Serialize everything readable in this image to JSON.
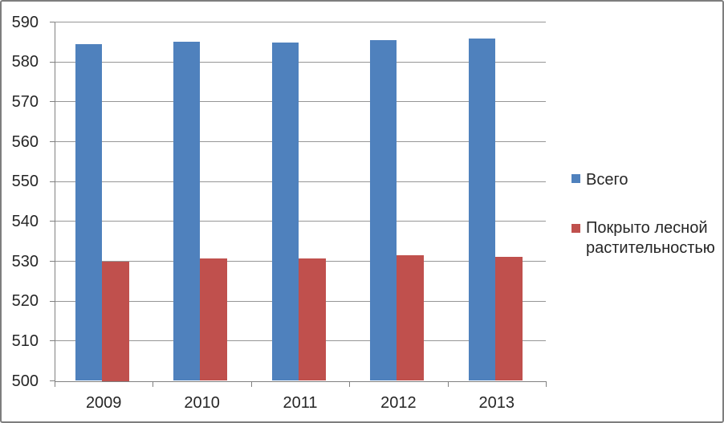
{
  "chart_data": {
    "type": "bar",
    "title": "",
    "categories": [
      "2009",
      "2010",
      "2011",
      "2012",
      "2013"
    ],
    "series": [
      {
        "name": "Всего",
        "color": "#4F81BD",
        "values": [
          584.5,
          585.1,
          584.9,
          585.5,
          585.8
        ]
      },
      {
        "name": "Покрыто лесной растительностью",
        "color": "#C0504D",
        "values": [
          530.0,
          530.7,
          530.7,
          531.6,
          531.1
        ]
      }
    ],
    "xlabel": "",
    "ylabel": "",
    "ylim": [
      500,
      590
    ],
    "ytick_step": 10,
    "yticks": [
      "590",
      "580",
      "570",
      "560",
      "550",
      "540",
      "530",
      "520",
      "510",
      "500"
    ],
    "grid": true,
    "legend_position": "right",
    "colors": {
      "series_total": "#4F81BD",
      "series_forest": "#C0504D",
      "gridline": "#969696",
      "axis": "#808080",
      "text": "#262626",
      "border": "#7e7e7e",
      "background": "#ffffff"
    }
  }
}
